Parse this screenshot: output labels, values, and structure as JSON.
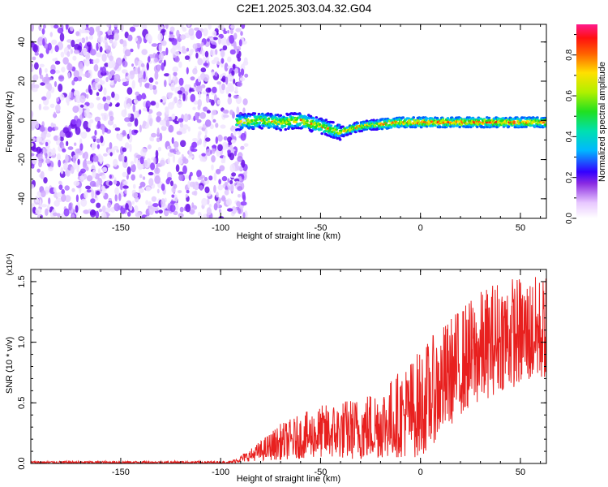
{
  "title": "C2E1.2025.303.04.32.G04",
  "chart_data": [
    {
      "type": "heatmap",
      "name": "spectrogram",
      "xlabel": "Height of straight line (km)",
      "ylabel": "Frequency (Hz)",
      "xlim": [
        -195,
        63
      ],
      "ylim": [
        -50,
        49
      ],
      "xticks": [
        -150,
        -100,
        -50,
        0,
        50
      ],
      "yticks": [
        -40,
        -20,
        0,
        20,
        40
      ],
      "noise_region_x": [
        -195,
        -92
      ],
      "signal_region_x": [
        -92,
        63
      ],
      "signal_center_freq_hz": [
        {
          "x": -90,
          "y": -1
        },
        {
          "x": -80,
          "y": 0
        },
        {
          "x": -70,
          "y": -1
        },
        {
          "x": -60,
          "y": 0
        },
        {
          "x": -50,
          "y": -3
        },
        {
          "x": -40,
          "y": -6
        },
        {
          "x": -30,
          "y": -3
        },
        {
          "x": -20,
          "y": -2
        },
        {
          "x": -10,
          "y": -1
        },
        {
          "x": 0,
          "y": -1
        },
        {
          "x": 20,
          "y": -1
        },
        {
          "x": 40,
          "y": -1
        },
        {
          "x": 63,
          "y": -1
        }
      ],
      "colorbar": {
        "label": "Normalized spectral amplitude",
        "range": [
          0,
          0.95
        ],
        "ticks": [
          "0.0",
          "0.2",
          "0.4",
          "0.6",
          "0.8"
        ],
        "tick_values": [
          0,
          0.2,
          0.4,
          0.6,
          0.8
        ]
      }
    },
    {
      "type": "line",
      "name": "snr",
      "xlabel": "Height of straight line (km)",
      "ylabel": "SNR (10 * v/v)",
      "ylabel_scale": "(x10⁴)",
      "xlim": [
        -195,
        63
      ],
      "ylim": [
        0,
        1.6
      ],
      "xticks": [
        -150,
        -100,
        -50,
        0,
        50
      ],
      "yticks": [
        "0.0",
        "0.5",
        "1.0",
        "1.5"
      ],
      "ytick_values": [
        0,
        0.5,
        1.0,
        1.5
      ],
      "series": [
        {
          "name": "SNR",
          "color": "#e8201f",
          "envelope": [
            {
              "x": -195,
              "low": 0.0,
              "high": 0.02
            },
            {
              "x": -95,
              "low": 0.0,
              "high": 0.02
            },
            {
              "x": -85,
              "low": 0.02,
              "high": 0.12
            },
            {
              "x": -70,
              "low": 0.03,
              "high": 0.33
            },
            {
              "x": -50,
              "low": 0.05,
              "high": 0.48
            },
            {
              "x": -30,
              "low": 0.03,
              "high": 0.56
            },
            {
              "x": -15,
              "low": 0.05,
              "high": 0.7
            },
            {
              "x": 0,
              "low": 0.05,
              "high": 0.95
            },
            {
              "x": 20,
              "low": 0.4,
              "high": 1.3
            },
            {
              "x": 40,
              "low": 0.6,
              "high": 1.55
            },
            {
              "x": 63,
              "low": 0.7,
              "high": 1.55
            }
          ]
        }
      ]
    }
  ],
  "colors": {
    "snr_line": "#e8201f",
    "noise_purple": "#7a1ff0",
    "axis": "#000000"
  }
}
